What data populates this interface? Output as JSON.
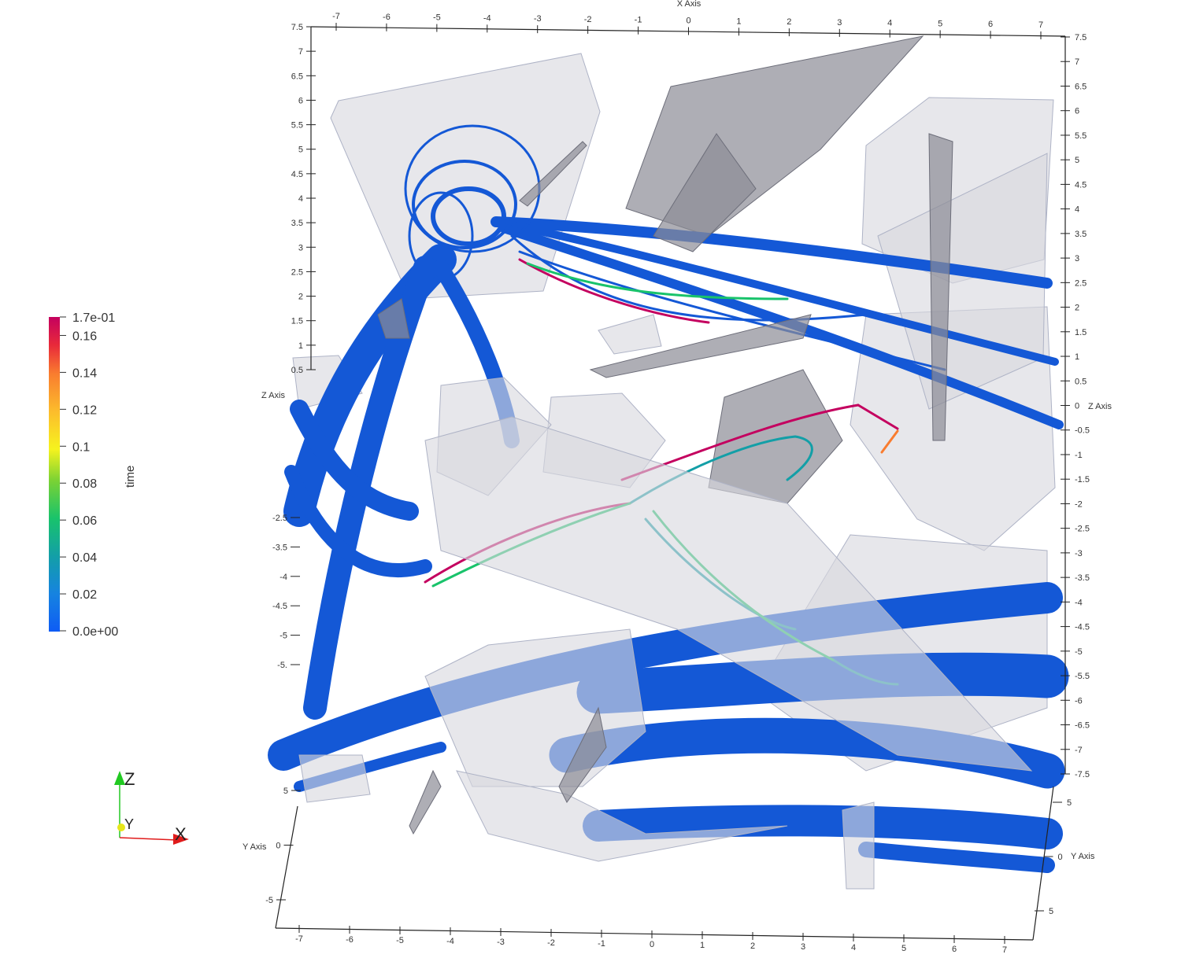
{
  "scene": {
    "description_colors": {
      "background": "#ffffff",
      "streamline_base": "#1458d6",
      "surface_fill": "#d9d9df",
      "surface_dark": "#8c8c95",
      "axis_line": "#222222"
    }
  },
  "colorbar": {
    "title": "time",
    "ticks": [
      "1.7e-01",
      "0.16",
      "0.14",
      "0.12",
      "0.1",
      "0.08",
      "0.06",
      "0.04",
      "0.02",
      "0.0e+00"
    ],
    "colors": [
      "#c4005f",
      "#e82a3a",
      "#f97c2f",
      "#fcbc2c",
      "#f6f31e",
      "#7ad234",
      "#19c36b",
      "#139fa7",
      "#1683e0",
      "#0e5cf5"
    ]
  },
  "axes": {
    "x_name": "X Axis",
    "y_name": "Y Axis",
    "z_name": "Z Axis",
    "x_top_ticks": [
      "-7",
      "-6",
      "-5",
      "-4",
      "-3",
      "-2",
      "-1",
      "0",
      "1",
      "2",
      "3",
      "4",
      "5",
      "6",
      "7"
    ],
    "x_bottom_ticks": [
      "-7",
      "-6",
      "-5",
      "-4",
      "-3",
      "-2",
      "-1",
      "0",
      "1",
      "2",
      "3",
      "4",
      "5",
      "6",
      "7"
    ],
    "z_left_ticks": [
      "7.5",
      "7",
      "6.5",
      "6",
      "5.5",
      "5",
      "4.5",
      "4",
      "3.5",
      "3",
      "2.5",
      "2",
      "1.5",
      "1",
      "0.5"
    ],
    "z_left_lower_ticks": [
      "-2.5",
      "-3.5",
      "-4",
      "-4.5",
      "-5",
      "-5."
    ],
    "z_right_ticks": [
      "7.5",
      "7",
      "6.5",
      "6",
      "5.5",
      "5",
      "4.5",
      "4",
      "3.5",
      "3",
      "2.5",
      "2",
      "1.5",
      "1",
      "0.5",
      "0",
      "-0.5",
      "-1",
      "-1.5",
      "-2",
      "-2.5",
      "-3",
      "-3.5",
      "-4",
      "-4.5",
      "-5",
      "-5.5",
      "-6",
      "-6.5",
      "-7",
      "-7.5"
    ],
    "y_left_ticks": [
      "5",
      "0",
      "-5"
    ],
    "y_right_ticks": [
      "5",
      "0",
      "5"
    ]
  },
  "orientation_triad": {
    "z_label": "Z",
    "y_label": "Y",
    "x_label": "X",
    "z_color": "#22c922",
    "y_color": "#e6e61a",
    "x_color": "#e01b1b"
  }
}
